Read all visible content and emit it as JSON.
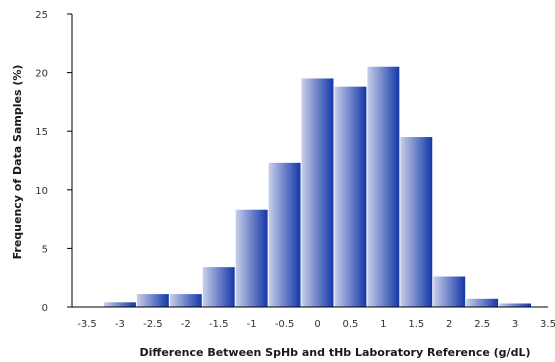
{
  "chart_data": {
    "type": "bar",
    "title": "",
    "xlabel": "Difference Between SpHb and tHb Laboratory Reference (g/dL)",
    "ylabel": "Frequency of Data Samples (%)",
    "ylim": [
      0,
      25
    ],
    "yticks": [
      0,
      5,
      10,
      15,
      20,
      25
    ],
    "xlim": [
      -3.5,
      3.5
    ],
    "xticks": [
      "-3.5",
      "-3",
      "-2.5",
      "-2",
      "-1.5",
      "-1",
      "-0.5",
      "0",
      "0.5",
      "1",
      "1.5",
      "2",
      "2.5",
      "3",
      "3.5"
    ],
    "categories": [
      "-3",
      "-2.5",
      "-2",
      "-1.5",
      "-1",
      "-0.5",
      "0",
      "0.5",
      "1",
      "1.5",
      "2",
      "2.5",
      "3"
    ],
    "values": [
      0.4,
      1.1,
      1.1,
      3.4,
      8.3,
      12.3,
      19.5,
      18.8,
      20.5,
      14.5,
      2.6,
      0.7,
      0.3
    ],
    "grid": false,
    "legend": "none",
    "bar_gradient": [
      "#c9cfea",
      "#1238a8"
    ]
  }
}
